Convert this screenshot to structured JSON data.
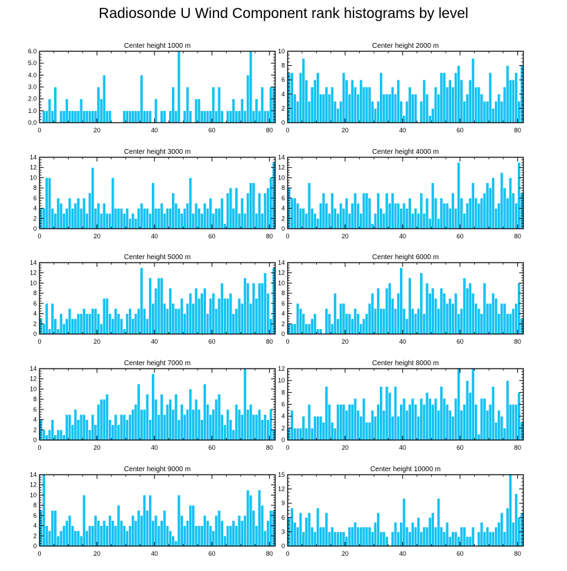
{
  "title": "Radiosonde U Wind Component rank histograms by level",
  "colors": {
    "bar": "#14C2F2",
    "bar_edge": "#ffffff",
    "axis": "#000000"
  },
  "chart_data": [
    {
      "type": "bar",
      "title": "Center height 1000 m",
      "x": "rank 0-81",
      "xlim": [
        0,
        82
      ],
      "ylim": [
        0,
        6
      ],
      "yticks": [
        "0.0",
        "1.0",
        "2.0",
        "3.0",
        "4.0",
        "5.0",
        "6.0"
      ],
      "xticks": [
        0,
        20,
        40,
        60,
        80
      ],
      "values": [
        0,
        1,
        1,
        2,
        1,
        3,
        0,
        1,
        1,
        2,
        1,
        1,
        1,
        1,
        2,
        1,
        1,
        1,
        1,
        1,
        3,
        2,
        4,
        1,
        1,
        0,
        0,
        0,
        0,
        1,
        1,
        1,
        1,
        1,
        1,
        4,
        1,
        1,
        1,
        0,
        2,
        0,
        1,
        1,
        0,
        1,
        3,
        1,
        6,
        0,
        1,
        3,
        1,
        0,
        2,
        2,
        1,
        1,
        1,
        1,
        3,
        1,
        3,
        1,
        0,
        1,
        1,
        2,
        1,
        1,
        2,
        1,
        4,
        6,
        1,
        2,
        1,
        3,
        1,
        1,
        3,
        3
      ]
    },
    {
      "type": "bar",
      "title": "Center height 2000 m",
      "x": "rank 0-81",
      "xlim": [
        0,
        82
      ],
      "ylim": [
        0,
        10
      ],
      "yticks": [
        "0",
        "2",
        "4",
        "6",
        "8",
        "10"
      ],
      "xticks": [
        0,
        20,
        40,
        60,
        80
      ],
      "values": [
        7,
        7,
        4,
        3,
        7,
        9,
        6,
        3,
        5,
        6,
        7,
        4,
        4,
        5,
        4,
        5,
        3,
        2,
        3,
        7,
        6,
        4,
        6,
        5,
        4,
        6,
        5,
        5,
        5,
        3,
        2,
        3,
        7,
        4,
        4,
        4,
        5,
        4,
        6,
        3,
        1,
        3,
        5,
        4,
        4,
        0,
        3,
        6,
        4,
        1,
        2,
        5,
        4,
        7,
        7,
        5,
        6,
        5,
        7,
        8,
        6,
        3,
        4,
        6,
        9,
        5,
        5,
        4,
        3,
        3,
        7,
        2,
        3,
        4,
        3,
        5,
        8,
        6,
        6,
        7,
        3,
        8
      ]
    },
    {
      "type": "bar",
      "title": "Center height 3000 m",
      "x": "rank 0-81",
      "xlim": [
        0,
        82
      ],
      "ylim": [
        0,
        14
      ],
      "yticks": [
        "0",
        "2",
        "4",
        "6",
        "8",
        "10",
        "12",
        "14"
      ],
      "xticks": [
        0,
        20,
        40,
        60,
        80
      ],
      "values": [
        4,
        4,
        10,
        10,
        4,
        3,
        6,
        5,
        3,
        4,
        6,
        4,
        5,
        6,
        4,
        6,
        3,
        7,
        12,
        4,
        5,
        3,
        5,
        3,
        3,
        10,
        4,
        4,
        4,
        3,
        4,
        2,
        3,
        2,
        4,
        5,
        4,
        4,
        3,
        9,
        4,
        4,
        5,
        3,
        4,
        4,
        7,
        5,
        4,
        3,
        4,
        5,
        10,
        3,
        5,
        4,
        3,
        5,
        4,
        6,
        3,
        4,
        4,
        6,
        1,
        7,
        8,
        4,
        8,
        3,
        6,
        3,
        7,
        9,
        9,
        3,
        7,
        3,
        7,
        8,
        10,
        13
      ]
    },
    {
      "type": "bar",
      "title": "Center height 4000 m",
      "x": "rank 0-81",
      "xlim": [
        0,
        82
      ],
      "ylim": [
        0,
        14
      ],
      "yticks": [
        "0",
        "2",
        "4",
        "6",
        "8",
        "10",
        "12",
        "14"
      ],
      "xticks": [
        0,
        20,
        40,
        60,
        80
      ],
      "values": [
        8,
        6,
        6,
        5,
        4,
        4,
        3,
        9,
        4,
        3,
        2,
        5,
        7,
        5,
        3,
        7,
        4,
        3,
        5,
        4,
        6,
        3,
        5,
        7,
        5,
        3,
        7,
        7,
        6,
        1,
        3,
        7,
        4,
        3,
        7,
        5,
        7,
        5,
        5,
        4,
        5,
        4,
        6,
        3,
        4,
        3,
        7,
        3,
        6,
        2,
        9,
        6,
        2,
        6,
        5,
        5,
        4,
        7,
        4,
        13,
        6,
        3,
        5,
        6,
        9,
        6,
        5,
        6,
        7,
        9,
        8,
        10,
        4,
        5,
        11,
        8,
        6,
        10,
        7,
        5,
        13,
        7
      ]
    },
    {
      "type": "bar",
      "title": "Center height 5000 m",
      "x": "rank 0-81",
      "xlim": [
        0,
        82
      ],
      "ylim": [
        0,
        14
      ],
      "yticks": [
        "0",
        "2",
        "4",
        "6",
        "8",
        "10",
        "12",
        "14"
      ],
      "xticks": [
        0,
        20,
        40,
        60,
        80
      ],
      "values": [
        3,
        2,
        6,
        1,
        6,
        3,
        1,
        4,
        2,
        3,
        5,
        3,
        3,
        4,
        4,
        5,
        4,
        4,
        5,
        5,
        4,
        2,
        7,
        7,
        4,
        3,
        5,
        4,
        3,
        1,
        4,
        5,
        3,
        4,
        5,
        13,
        5,
        3,
        11,
        6,
        9,
        11,
        11,
        6,
        5,
        9,
        6,
        5,
        5,
        7,
        4,
        6,
        8,
        6,
        9,
        7,
        8,
        9,
        4,
        7,
        8,
        5,
        7,
        10,
        7,
        7,
        8,
        4,
        5,
        7,
        6,
        11,
        10,
        6,
        10,
        7,
        10,
        10,
        12,
        8,
        3,
        13
      ]
    },
    {
      "type": "bar",
      "title": "Center height 6000 m",
      "x": "rank 0-81",
      "xlim": [
        0,
        82
      ],
      "ylim": [
        0,
        14
      ],
      "yticks": [
        "0",
        "2",
        "4",
        "6",
        "8",
        "10",
        "12",
        "14"
      ],
      "xticks": [
        0,
        20,
        40,
        60,
        80
      ],
      "values": [
        2,
        2,
        2,
        6,
        5,
        4,
        2,
        2,
        3,
        4,
        1,
        1,
        0,
        5,
        4,
        2,
        8,
        3,
        6,
        6,
        4,
        4,
        3,
        5,
        4,
        2,
        3,
        4,
        6,
        8,
        5,
        9,
        5,
        5,
        9,
        10,
        7,
        5,
        8,
        13,
        5,
        3,
        11,
        5,
        4,
        5,
        12,
        4,
        10,
        8,
        9,
        7,
        5,
        9,
        8,
        6,
        7,
        6,
        8,
        4,
        5,
        11,
        9,
        10,
        8,
        6,
        5,
        4,
        10,
        6,
        6,
        8,
        7,
        4,
        6,
        6,
        4,
        4,
        5,
        6,
        10,
        3
      ]
    },
    {
      "type": "bar",
      "title": "Center height 7000 m",
      "x": "rank 0-81",
      "xlim": [
        0,
        82
      ],
      "ylim": [
        0,
        14
      ],
      "yticks": [
        "0",
        "2",
        "4",
        "6",
        "8",
        "10",
        "12",
        "14"
      ],
      "xticks": [
        0,
        20,
        40,
        60,
        80
      ],
      "values": [
        4,
        2,
        1,
        2,
        4,
        1,
        2,
        2,
        1,
        5,
        5,
        3,
        6,
        4,
        5,
        5,
        4,
        2,
        5,
        3,
        7,
        8,
        8,
        9,
        4,
        3,
        5,
        3,
        5,
        5,
        4,
        5,
        6,
        7,
        11,
        6,
        6,
        9,
        4,
        13,
        8,
        5,
        9,
        5,
        7,
        8,
        6,
        9,
        4,
        7,
        5,
        6,
        10,
        6,
        8,
        6,
        4,
        11,
        7,
        5,
        6,
        8,
        9,
        5,
        3,
        6,
        4,
        2,
        7,
        6,
        5,
        14,
        6,
        7,
        5,
        5,
        6,
        4,
        5,
        4,
        6,
        2
      ]
    },
    {
      "type": "bar",
      "title": "Center height 8000 m",
      "x": "rank 0-81",
      "xlim": [
        0,
        82
      ],
      "ylim": [
        0,
        12
      ],
      "yticks": [
        "0",
        "2",
        "4",
        "6",
        "8",
        "10",
        "12"
      ],
      "xticks": [
        0,
        20,
        40,
        60,
        80
      ],
      "values": [
        2,
        5,
        2,
        2,
        2,
        4,
        2,
        6,
        2,
        4,
        4,
        4,
        3,
        9,
        6,
        3,
        2,
        6,
        6,
        6,
        5,
        6,
        6,
        7,
        5,
        4,
        7,
        3,
        3,
        5,
        4,
        6,
        9,
        5,
        9,
        8,
        4,
        9,
        4,
        6,
        7,
        5,
        6,
        7,
        6,
        4,
        7,
        6,
        8,
        7,
        6,
        7,
        5,
        9,
        7,
        6,
        5,
        4,
        7,
        12,
        5,
        6,
        10,
        8,
        12,
        6,
        1,
        7,
        7,
        5,
        6,
        9,
        3,
        5,
        4,
        2,
        10,
        6,
        6,
        6,
        8,
        3
      ]
    },
    {
      "type": "bar",
      "title": "Center height 9000 m",
      "x": "rank 0-81",
      "xlim": [
        0,
        82
      ],
      "ylim": [
        0,
        14
      ],
      "yticks": [
        "0",
        "2",
        "4",
        "6",
        "8",
        "10",
        "12",
        "14"
      ],
      "xticks": [
        0,
        20,
        40,
        60,
        80
      ],
      "values": [
        7,
        14,
        4,
        3,
        7,
        7,
        2,
        3,
        4,
        5,
        6,
        4,
        3,
        3,
        2,
        10,
        3,
        4,
        4,
        6,
        5,
        4,
        5,
        4,
        6,
        5,
        4,
        8,
        5,
        4,
        3,
        4,
        6,
        5,
        7,
        6,
        10,
        7,
        10,
        5,
        6,
        4,
        5,
        7,
        4,
        3,
        2,
        1,
        10,
        6,
        4,
        5,
        8,
        8,
        4,
        4,
        4,
        6,
        5,
        4,
        3,
        6,
        7,
        5,
        2,
        4,
        4,
        5,
        4,
        6,
        5,
        6,
        11,
        10,
        7,
        4,
        11,
        8,
        3,
        5,
        7,
        7
      ]
    },
    {
      "type": "bar",
      "title": "Center height 10000 m",
      "x": "rank 0-81",
      "xlim": [
        0,
        82
      ],
      "ylim": [
        0,
        15
      ],
      "yticks": [
        "0",
        "3",
        "6",
        "9",
        "12",
        "15"
      ],
      "xticks": [
        0,
        20,
        40,
        60,
        80
      ],
      "values": [
        6,
        8,
        5,
        4,
        7,
        3,
        6,
        7,
        4,
        3,
        8,
        4,
        4,
        7,
        3,
        4,
        3,
        3,
        3,
        3,
        2,
        4,
        4,
        5,
        4,
        4,
        4,
        4,
        4,
        3,
        5,
        7,
        3,
        3,
        2,
        0,
        3,
        5,
        3,
        5,
        10,
        4,
        3,
        5,
        4,
        6,
        3,
        4,
        4,
        6,
        7,
        4,
        10,
        4,
        3,
        5,
        2,
        3,
        3,
        2,
        4,
        4,
        2,
        2,
        4,
        0,
        3,
        5,
        3,
        4,
        3,
        3,
        4,
        5,
        7,
        3,
        8,
        15,
        5,
        11,
        6,
        7
      ]
    }
  ]
}
